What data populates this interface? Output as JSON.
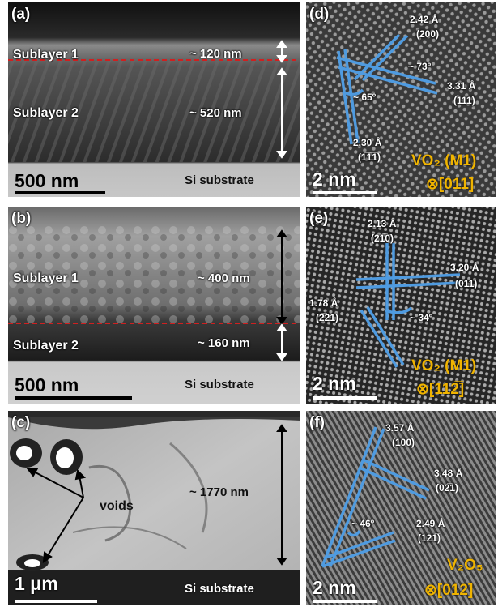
{
  "panels": {
    "a": {
      "label": "(a)",
      "sublayer1": "Sublayer 1",
      "sublayer2": "Sublayer 2",
      "thick1": "~ 120 nm",
      "thick2": "~ 520 nm",
      "scale": "500 nm",
      "substrate": "Si substrate"
    },
    "b": {
      "label": "(b)",
      "sublayer1": "Sublayer 1",
      "sublayer2": "Sublayer 2",
      "thick1": "~ 400 nm",
      "thick2": "~ 160 nm",
      "scale": "500 nm",
      "substrate": "Si substrate"
    },
    "c": {
      "label": "(c)",
      "voids": "voids",
      "thick": "~ 1770 nm",
      "scale": "1 μm",
      "substrate": "Si substrate"
    },
    "d": {
      "label": "(d)",
      "d1": "2.42 Å",
      "h1": "(200)",
      "d2": "3.31 Å",
      "h2": "(111̅)",
      "d3": "2.30 Å",
      "h3": "(1̅1̅1̅)",
      "angle1": "~ 73º",
      "angle2": "~ 65º",
      "scale": "2 nm",
      "phase": "VO₂ (M1)",
      "zone": "⊗[011]"
    },
    "e": {
      "label": "(e)",
      "d1": "2.13 Å",
      "h1": "(21̅0)",
      "d2": "3.20 Å",
      "h2": "(011)",
      "d3": "1.78 Å",
      "h3": "(2̅21)",
      "angle1": "~ 34º",
      "scale": "2 nm",
      "phase": "VO₂ (M1)",
      "zone": "⊗[112̅]"
    },
    "f": {
      "label": "(f)",
      "d1": "3.57 Å",
      "h1": "(100)",
      "d2": "3.48 Å",
      "h2": "(02̅1)",
      "d3": "2.49 Å",
      "h3": "(121̅)",
      "angle1": "~ 46º",
      "scale": "2 nm",
      "phase": "V₂O₅",
      "zone": "⊗[012]"
    }
  },
  "colors": {
    "guide": "#4f9be0",
    "interface": "#d02020",
    "accent": "#f0b400"
  }
}
